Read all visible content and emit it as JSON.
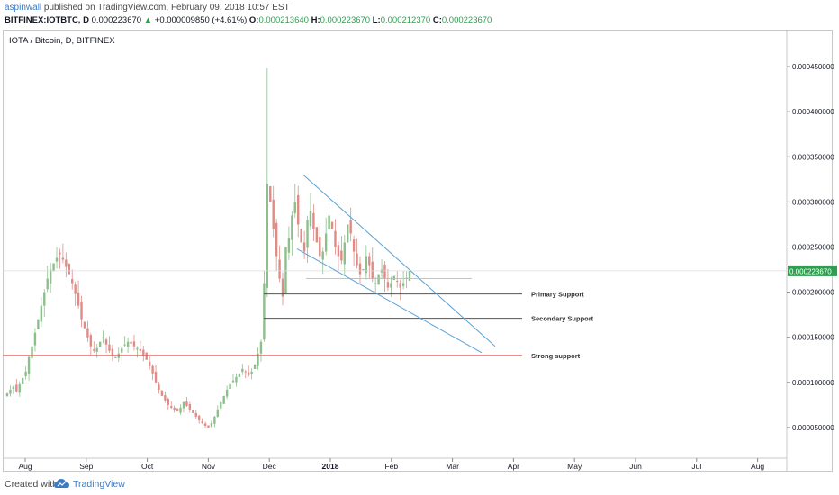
{
  "header": {
    "author": "aspinwall",
    "published_text": "published on TradingView.com, February 09, 2018 10:57 EST",
    "symbol": "BITFINEX:IOTBTC, D",
    "last_price": "0.000223670",
    "change_arrow": "▲",
    "change": "+0.000009850 (+4.61%)",
    "open_label": "O:",
    "open": "0.000213640",
    "high_label": "H:",
    "high": "0.000223670",
    "low_label": "L:",
    "low": "0.000212370",
    "close_label": "C:",
    "close": "0.000223670"
  },
  "footer": {
    "created_with": "Created with",
    "brand": "TradingView"
  },
  "colors": {
    "up": "#8dbf8d",
    "down": "#e08b86",
    "support_line": "#555555",
    "strong_support": "#e06666",
    "trend_line": "#5aa2d6",
    "price_label_bg": "#2e9e4f",
    "brand": "#3b7cc4"
  },
  "chart_data": {
    "type": "candlestick",
    "title": "IOTA / Bitcoin, D, BITFINEX",
    "ylim": [
      2e-05,
      0.00048
    ],
    "y_ticks": [
      "0.000050000",
      "0.000100000",
      "0.000150000",
      "0.000200000",
      "0.000250000",
      "0.000300000",
      "0.000350000",
      "0.000400000",
      "0.000450000"
    ],
    "x_ticks": [
      "Aug",
      "Sep",
      "Oct",
      "Nov",
      "Dec",
      "2018",
      "Feb",
      "Mar",
      "Apr",
      "May",
      "Jun",
      "Jul",
      "Aug"
    ],
    "current_price_label": "0.000223670",
    "current_price": 0.00022367,
    "series": [
      {
        "name": "IOTBTC",
        "values": [
          8.8e-05,
          9.2e-05,
          9.5e-05,
          9e-05,
          9.8e-05,
          0.000105,
          0.000112,
          0.000128,
          0.00014,
          0.000155,
          0.00017,
          0.000185,
          0.0002,
          0.000215,
          0.000225,
          0.000232,
          0.000238,
          0.000242,
          0.000236,
          0.000228,
          0.00022,
          0.00021,
          0.000198,
          0.000185,
          0.00017,
          0.00016,
          0.00015,
          0.00014,
          0.000135,
          0.000138,
          0.000145,
          0.00015,
          0.000142,
          0.000135,
          0.00013,
          0.000128,
          0.000132,
          0.000138,
          0.000142,
          0.000145,
          0.000143,
          0.00014,
          0.000138,
          0.000135,
          0.00013,
          0.000125,
          0.000118,
          0.00011,
          0.0001,
          9.2e-05,
          8.5e-05,
          8e-05,
          7.5e-05,
          7.2e-05,
          7e-05,
          6.8e-05,
          7.2e-05,
          7.8e-05,
          7.4e-05,
          7e-05,
          6.6e-05,
          6.2e-05,
          5.8e-05,
          5.5e-05,
          5.2e-05,
          5e-05,
          5.5e-05,
          6.2e-05,
          7e-05,
          7.8e-05,
          8.5e-05,
          9.2e-05,
          9.8e-05,
          0.000102,
          0.000106,
          0.00011,
          0.000115,
          0.000112,
          0.000108,
          0.000112,
          0.00012,
          0.000132,
          0.000145,
          0.00021,
          0.00032,
          0.0003,
          0.00027,
          0.00024,
          0.000215,
          0.000195,
          0.00025,
          0.00026,
          0.000285,
          0.0003,
          0.000275,
          0.000255,
          0.000245,
          0.00028,
          0.00029,
          0.00027,
          0.000255,
          0.00024,
          0.000245,
          0.000265,
          0.000285,
          0.00027,
          0.00025,
          0.00024,
          0.000235,
          0.000255,
          0.000275,
          0.000265,
          0.000245,
          0.00023,
          0.00022,
          0.000225,
          0.00024,
          0.00023,
          0.000215,
          0.00021,
          0.00022,
          0.000225,
          0.000215,
          0.000205,
          0.00021,
          0.000218,
          0.000212,
          0.000205,
          0.00021,
          0.000216,
          0.00022367
        ]
      }
    ],
    "peak": 0.000448,
    "annotations": [
      {
        "text": "Primary Support",
        "value": 0.000198
      },
      {
        "text": "Secondary Support",
        "value": 0.000171
      },
      {
        "text": "Strong support",
        "value": 0.00013
      }
    ],
    "grid": false,
    "legend": "none"
  }
}
